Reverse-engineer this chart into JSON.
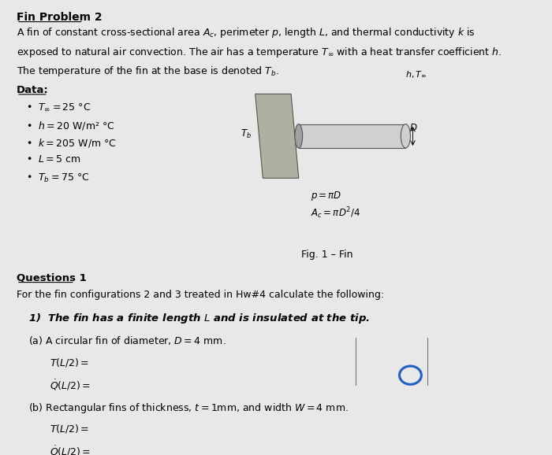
{
  "background_color": "#e8e8e8",
  "title": "Fin Problem 2",
  "intro_line1": "A fin of constant cross-sectional area $A_c$, perimeter $p$, length $L$, and thermal conductivity $k$ is",
  "intro_line2": "exposed to natural air convection. The air has a temperature $T_\\infty$ with a heat transfer coefficient $h$.",
  "intro_line3": "The temperature of the fin at the base is denoted $T_b$.",
  "data_label": "Data:",
  "bullet_items": [
    "$T_\\infty = 25$ °C",
    "$h = 20$ W/m² °C",
    "$k = 205$ W/m °C",
    "$L = 5$ cm",
    "$T_b = 75$ °C"
  ],
  "fig_label": "Fig. 1 – Fin",
  "questions_label": "Questions 1",
  "questions_text": "For the fin configurations 2 and 3 treated in Hw#4 calculate the following:",
  "q1_bold": "1)  The fin has a finite length $L$ and is insulated at the tip.",
  "qa_label": "(a) A circular fin of diameter, $D = 4$ mm.",
  "qa_TL2": "$T(L/2) =$",
  "qa_QL2": "$\\dot{Q}(L/2) =$",
  "qb_label": "(b) Rectangular fins of thickness, $t = 1$mm, and width $W = 4$ mm.",
  "qb_TL2": "$T(L/2) =$",
  "qb_QL2": "$\\dot{Q}(L/2) =$",
  "plate_color": "#b0b0a0",
  "cyl_color": "#d0d0d0",
  "cyl_dark": "#a0a0a0",
  "edge_color": "#555555",
  "text_color": "black",
  "circle_color": "#2060c0"
}
